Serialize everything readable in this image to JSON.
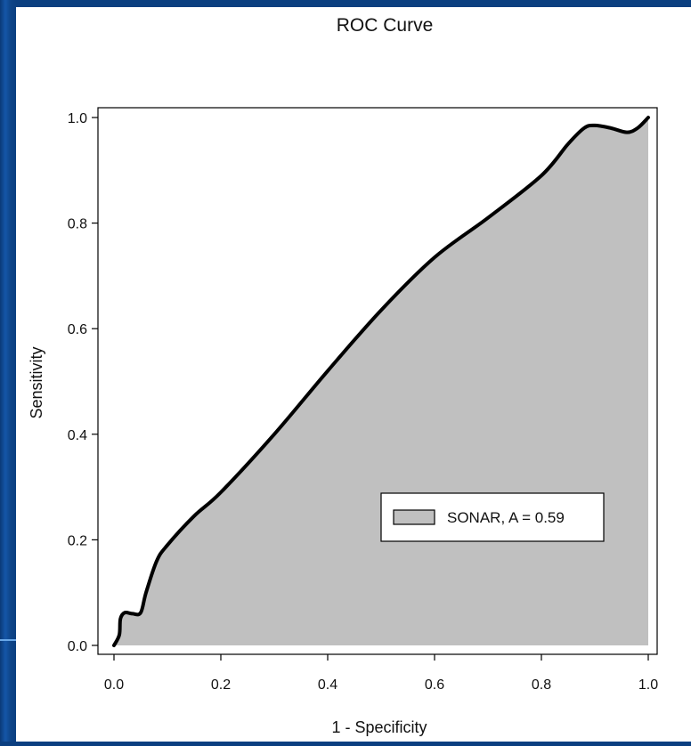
{
  "chart_data": {
    "type": "area",
    "title": "ROC Curve",
    "xlabel": "1 - Specificity",
    "ylabel": "Sensitivity",
    "xlim": [
      0.0,
      1.0
    ],
    "ylim": [
      0.0,
      1.0
    ],
    "x_ticks": [
      "0.0",
      "0.2",
      "0.4",
      "0.6",
      "0.8",
      "1.0"
    ],
    "y_ticks": [
      "0.0",
      "0.2",
      "0.4",
      "0.6",
      "0.8",
      "1.0"
    ],
    "grid": false,
    "legend": {
      "placement": "bottom-right",
      "label": "SONAR, A = 0.59"
    },
    "series": [
      {
        "name": "SONAR, A = 0.59",
        "fill_color": "#c0c0c0",
        "line_color": "#000000",
        "points": [
          [
            0.0,
            0.0
          ],
          [
            0.01,
            0.02
          ],
          [
            0.012,
            0.05
          ],
          [
            0.02,
            0.062
          ],
          [
            0.035,
            0.06
          ],
          [
            0.05,
            0.062
          ],
          [
            0.06,
            0.1
          ],
          [
            0.08,
            0.16
          ],
          [
            0.1,
            0.19
          ],
          [
            0.15,
            0.245
          ],
          [
            0.2,
            0.29
          ],
          [
            0.3,
            0.4
          ],
          [
            0.4,
            0.52
          ],
          [
            0.5,
            0.635
          ],
          [
            0.6,
            0.735
          ],
          [
            0.7,
            0.81
          ],
          [
            0.8,
            0.89
          ],
          [
            0.85,
            0.95
          ],
          [
            0.88,
            0.98
          ],
          [
            0.9,
            0.985
          ],
          [
            0.93,
            0.98
          ],
          [
            0.96,
            0.972
          ],
          [
            0.98,
            0.98
          ],
          [
            1.0,
            1.0
          ]
        ]
      }
    ]
  }
}
